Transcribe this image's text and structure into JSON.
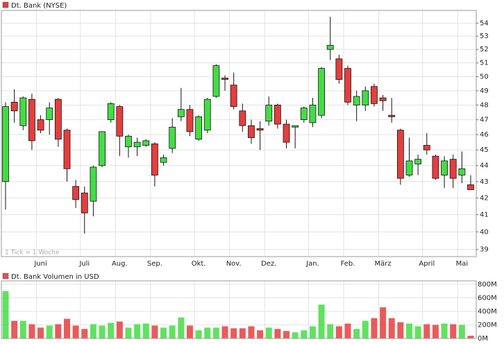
{
  "chart_data": [
    {
      "type": "candlestick",
      "annotation": "1 Tick = 1 Woche",
      "log_scale": true,
      "grid": true,
      "up_color": "#44dd44",
      "down_color": "#e53e3e",
      "categories": [
        null,
        null,
        null,
        null,
        "Juni",
        null,
        null,
        null,
        null,
        "Juli",
        null,
        null,
        null,
        "Aug.",
        null,
        null,
        null,
        "Sep.",
        null,
        null,
        null,
        null,
        "Okt.",
        null,
        null,
        null,
        "Nov.",
        null,
        null,
        null,
        "Dez.",
        null,
        null,
        null,
        null,
        "Jan.",
        null,
        null,
        null,
        "Feb.",
        null,
        null,
        null,
        "März",
        null,
        null,
        null,
        null,
        "April",
        null,
        null,
        null,
        "Mai",
        null
      ],
      "series": [
        {
          "name": "Dt. Bank (NYSE)",
          "color": "#e04040",
          "open": [
            43.0,
            48.2,
            46.6,
            48.4,
            47.0,
            47.0,
            48.4,
            46.3,
            42.7,
            42.3,
            41.8,
            44.0,
            47.0,
            47.9,
            45.2,
            45.2,
            45.3,
            45.4,
            44.2,
            45.1,
            47.2,
            47.7,
            45.7,
            46.3,
            48.6,
            49.9,
            49.4,
            47.6,
            46.6,
            46.4,
            46.9,
            48.0,
            46.7,
            46.5,
            47.0,
            46.8,
            47.3,
            52.0,
            51.3,
            50.6,
            48.0,
            48.0,
            49.3,
            48.5,
            47.3,
            46.3,
            43.4,
            44.1,
            45.3,
            44.6,
            43.4,
            44.4,
            43.4,
            42.8
          ],
          "high": [
            48.2,
            49.1,
            48.6,
            48.8,
            47.3,
            48.2,
            48.5,
            46.4,
            43.1,
            42.7,
            44.0,
            46.2,
            48.2,
            48.0,
            46.0,
            45.8,
            45.7,
            45.5,
            44.7,
            47.1,
            49.2,
            48.0,
            47.3,
            48.5,
            50.9,
            50.1,
            50.3,
            48.1,
            47.0,
            46.9,
            48.6,
            48.1,
            47.0,
            46.6,
            47.9,
            48.5,
            50.7,
            54.5,
            51.6,
            50.8,
            49.0,
            49.3,
            49.5,
            48.7,
            48.5,
            46.4,
            45.8,
            44.7,
            46.1,
            44.7,
            44.6,
            44.7,
            44.9,
            43.4
          ],
          "low": [
            41.3,
            46.8,
            46.3,
            45.0,
            46.1,
            46.0,
            45.2,
            43.0,
            41.4,
            39.9,
            40.9,
            43.9,
            46.8,
            44.6,
            44.5,
            44.6,
            45.2,
            42.7,
            44.0,
            44.8,
            46.9,
            45.9,
            45.6,
            46.1,
            48.5,
            49.0,
            47.7,
            46.2,
            45.4,
            45.0,
            46.6,
            46.4,
            45.1,
            45.1,
            46.8,
            46.5,
            47.1,
            51.2,
            49.5,
            48.0,
            46.9,
            47.6,
            47.9,
            47.6,
            46.8,
            42.8,
            43.3,
            43.4,
            44.7,
            43.1,
            42.6,
            42.6,
            42.9,
            42.5
          ],
          "close": [
            47.9,
            47.6,
            48.5,
            45.6,
            46.3,
            47.8,
            45.7,
            43.8,
            41.9,
            41.1,
            43.9,
            46.2,
            48.1,
            45.9,
            45.9,
            45.5,
            45.6,
            43.4,
            44.5,
            46.5,
            47.7,
            46.2,
            47.2,
            48.4,
            50.8,
            49.8,
            47.9,
            46.6,
            45.8,
            46.3,
            48.0,
            46.7,
            45.5,
            46.6,
            47.8,
            48.0,
            50.6,
            52.3,
            49.8,
            48.2,
            48.6,
            49.0,
            48.1,
            48.3,
            47.2,
            43.2,
            44.3,
            44.4,
            45.0,
            43.2,
            44.3,
            43.2,
            43.8,
            42.5
          ]
        }
      ],
      "ylim": [
        38.6,
        55
      ],
      "yticks": [
        39,
        40,
        41,
        42,
        43,
        44,
        45,
        46,
        47,
        48,
        49,
        50,
        51,
        52,
        53,
        54
      ]
    },
    {
      "type": "bar",
      "grid": true,
      "series": [
        {
          "name": "Dt. Bank Volumen in USD",
          "color": "#e05050",
          "values": [
            700,
            260,
            260,
            210,
            160,
            190,
            210,
            290,
            190,
            140,
            210,
            190,
            230,
            250,
            160,
            210,
            220,
            190,
            160,
            190,
            310,
            190,
            120,
            160,
            160,
            180,
            150,
            150,
            180,
            120,
            160,
            140,
            110,
            90,
            120,
            180,
            500,
            210,
            180,
            220,
            140,
            260,
            300,
            460,
            300,
            240,
            220,
            180,
            210,
            200,
            220,
            210,
            200,
            40
          ]
        }
      ],
      "ylim": [
        0,
        850
      ],
      "yticks": [
        {
          "value": 0,
          "label": "0M"
        },
        {
          "value": 200,
          "label": "200M"
        },
        {
          "value": 400,
          "label": "400M"
        },
        {
          "value": 600,
          "label": "600M"
        },
        {
          "value": 800,
          "label": "800M"
        }
      ]
    }
  ]
}
